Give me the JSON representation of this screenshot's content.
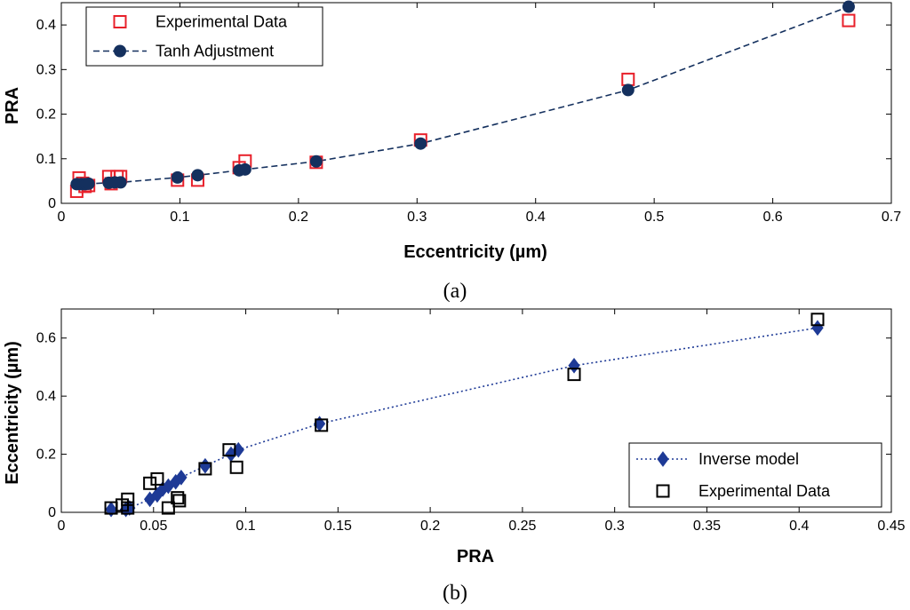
{
  "chart_data": [
    {
      "type": "scatter",
      "caption": "(a)",
      "xlabel": "Eccentricity (µm)",
      "ylabel": "PRA",
      "xlim": [
        0,
        0.7
      ],
      "ylim": [
        0,
        0.45
      ],
      "xticks": [
        "0",
        "0.1",
        "0.2",
        "0.3",
        "0.4",
        "0.5",
        "0.6",
        "0.7"
      ],
      "yticks": [
        "0",
        "0.1",
        "0.2",
        "0.3",
        "0.4"
      ],
      "legend_position": "top-left",
      "series": [
        {
          "name": "Experimental Data",
          "marker": "open-square",
          "color": "#e8202a",
          "points": [
            [
              0.013,
              0.027
            ],
            [
              0.015,
              0.057
            ],
            [
              0.018,
              0.045
            ],
            [
              0.02,
              0.038
            ],
            [
              0.023,
              0.04
            ],
            [
              0.04,
              0.06
            ],
            [
              0.042,
              0.044
            ],
            [
              0.047,
              0.06
            ],
            [
              0.05,
              0.06
            ],
            [
              0.098,
              0.052
            ],
            [
              0.115,
              0.052
            ],
            [
              0.15,
              0.08
            ],
            [
              0.155,
              0.095
            ],
            [
              0.215,
              0.092
            ],
            [
              0.303,
              0.142
            ],
            [
              0.478,
              0.278
            ],
            [
              0.664,
              0.41
            ]
          ]
        },
        {
          "name": "Tanh Adjustment",
          "marker": "filled-circle",
          "line": "dashed",
          "color": "#14305e",
          "points": [
            [
              0.013,
              0.043
            ],
            [
              0.017,
              0.043
            ],
            [
              0.02,
              0.043
            ],
            [
              0.023,
              0.044
            ],
            [
              0.04,
              0.046
            ],
            [
              0.045,
              0.047
            ],
            [
              0.05,
              0.047
            ],
            [
              0.098,
              0.058
            ],
            [
              0.115,
              0.063
            ],
            [
              0.15,
              0.074
            ],
            [
              0.155,
              0.076
            ],
            [
              0.215,
              0.094
            ],
            [
              0.303,
              0.134
            ],
            [
              0.478,
              0.254
            ],
            [
              0.664,
              0.441
            ]
          ]
        }
      ]
    },
    {
      "type": "scatter",
      "caption": "(b)",
      "xlabel": "PRA",
      "ylabel": "Eccentricity (µm)",
      "xlim": [
        0,
        0.45
      ],
      "ylim": [
        0,
        0.7
      ],
      "xticks": [
        "0",
        "0.05",
        "0.1",
        "0.15",
        "0.2",
        "0.25",
        "0.3",
        "0.35",
        "0.4",
        "0.45"
      ],
      "yticks": [
        "0",
        "0.2",
        "0.4",
        "0.6"
      ],
      "legend_position": "bottom-right",
      "series": [
        {
          "name": "Inverse model",
          "marker": "filled-diamond",
          "line": "dotted",
          "color": "#1e3a96",
          "points": [
            [
              0.027,
              0.01
            ],
            [
              0.035,
              0.01
            ],
            [
              0.037,
              0.015
            ],
            [
              0.048,
              0.045
            ],
            [
              0.052,
              0.06
            ],
            [
              0.055,
              0.08
            ],
            [
              0.058,
              0.09
            ],
            [
              0.062,
              0.105
            ],
            [
              0.065,
              0.12
            ],
            [
              0.078,
              0.16
            ],
            [
              0.092,
              0.2
            ],
            [
              0.096,
              0.215
            ],
            [
              0.14,
              0.305
            ],
            [
              0.278,
              0.505
            ],
            [
              0.41,
              0.635
            ]
          ]
        },
        {
          "name": "Experimental Data",
          "marker": "open-square",
          "color": "#000000",
          "points": [
            [
              0.027,
              0.015
            ],
            [
              0.033,
              0.025
            ],
            [
              0.036,
              0.045
            ],
            [
              0.036,
              0.015
            ],
            [
              0.048,
              0.1
            ],
            [
              0.052,
              0.115
            ],
            [
              0.058,
              0.015
            ],
            [
              0.063,
              0.05
            ],
            [
              0.064,
              0.04
            ],
            [
              0.078,
              0.15
            ],
            [
              0.091,
              0.215
            ],
            [
              0.095,
              0.155
            ],
            [
              0.141,
              0.3
            ],
            [
              0.278,
              0.475
            ],
            [
              0.41,
              0.664
            ]
          ]
        }
      ]
    }
  ]
}
